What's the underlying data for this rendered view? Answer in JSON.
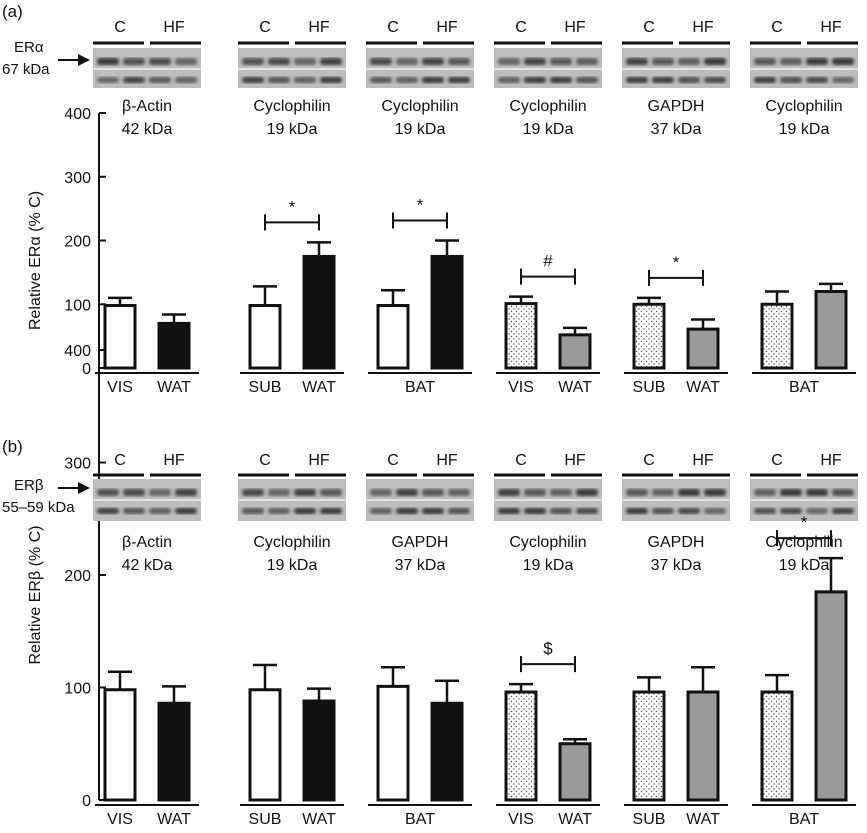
{
  "chart_data": [
    {
      "type": "bar",
      "panel_label": "(a)",
      "ylabel": "Relative ERα (% C)",
      "ylim": [
        0,
        400
      ],
      "yticks": [
        "0",
        "100",
        "200",
        "300",
        "400"
      ],
      "protein_label": "ERα",
      "protein_size": "67 kDa",
      "blot_lanes": [
        "C",
        "HF"
      ],
      "groups": [
        {
          "loading_control": "β-Actin",
          "loading_size": "42 kDa",
          "group_label": "",
          "categories": [
            "VIS",
            "WAT"
          ],
          "values": [
            98,
            70
          ],
          "errors": [
            12,
            14
          ],
          "fills": [
            "white",
            "black"
          ],
          "significance": ""
        },
        {
          "loading_control": "Cyclophilin",
          "loading_size": "19 kDa",
          "group_label": "",
          "categories": [
            "SUB",
            "WAT"
          ],
          "values": [
            98,
            175
          ],
          "errors": [
            30,
            22
          ],
          "fills": [
            "white",
            "black"
          ],
          "significance": "*"
        },
        {
          "loading_control": "Cyclophilin",
          "loading_size": "19 kDa",
          "group_label": "BAT",
          "categories": [
            "",
            ""
          ],
          "values": [
            98,
            175
          ],
          "errors": [
            24,
            25
          ],
          "fills": [
            "white",
            "black"
          ],
          "significance": "*"
        },
        {
          "loading_control": "Cyclophilin",
          "loading_size": "19 kDa",
          "group_label": "",
          "categories": [
            "VIS",
            "WAT"
          ],
          "values": [
            101,
            52
          ],
          "errors": [
            11,
            11
          ],
          "fills": [
            "dotted",
            "grey"
          ],
          "significance": "#"
        },
        {
          "loading_control": "GAPDH",
          "loading_size": "37 kDa",
          "group_label": "",
          "categories": [
            "SUB",
            "WAT"
          ],
          "values": [
            100,
            61
          ],
          "errors": [
            10,
            15
          ],
          "fills": [
            "dotted",
            "grey"
          ],
          "significance": "*"
        },
        {
          "loading_control": "Cyclophilin",
          "loading_size": "19 kDa",
          "group_label": "BAT",
          "categories": [
            "",
            ""
          ],
          "values": [
            100,
            120
          ],
          "errors": [
            20,
            12
          ],
          "fills": [
            "dotted",
            "grey"
          ],
          "significance": ""
        }
      ]
    },
    {
      "type": "bar",
      "panel_label": "(b)",
      "ylabel": "Relative ERβ (% C)",
      "ylim": [
        0,
        400
      ],
      "yticks": [
        "0",
        "100",
        "200",
        "300",
        "400"
      ],
      "protein_label": "ERβ",
      "protein_size": "55–59 kDa",
      "blot_lanes": [
        "C",
        "HF"
      ],
      "groups": [
        {
          "loading_control": "β-Actin",
          "loading_size": "42 kDa",
          "group_label": "",
          "categories": [
            "VIS",
            "WAT"
          ],
          "values": [
            98,
            86
          ],
          "errors": [
            16,
            15
          ],
          "fills": [
            "white",
            "black"
          ],
          "significance": ""
        },
        {
          "loading_control": "Cyclophilin",
          "loading_size": "19 kDa",
          "group_label": "",
          "categories": [
            "SUB",
            "WAT"
          ],
          "values": [
            98,
            88
          ],
          "errors": [
            22,
            11
          ],
          "fills": [
            "white",
            "black"
          ],
          "significance": ""
        },
        {
          "loading_control": "GAPDH",
          "loading_size": "37 kDa",
          "group_label": "BAT",
          "categories": [
            "",
            ""
          ],
          "values": [
            101,
            86
          ],
          "errors": [
            17,
            20
          ],
          "fills": [
            "white",
            "black"
          ],
          "significance": ""
        },
        {
          "loading_control": "Cyclophilin",
          "loading_size": "19 kDa",
          "group_label": "",
          "categories": [
            "VIS",
            "WAT"
          ],
          "values": [
            96,
            50
          ],
          "errors": [
            7,
            4
          ],
          "fills": [
            "dotted",
            "grey"
          ],
          "significance": "$"
        },
        {
          "loading_control": "GAPDH",
          "loading_size": "37 kDa",
          "group_label": "",
          "categories": [
            "SUB",
            "WAT"
          ],
          "values": [
            96,
            96
          ],
          "errors": [
            13,
            22
          ],
          "fills": [
            "dotted",
            "grey"
          ],
          "significance": ""
        },
        {
          "loading_control": "Cyclophilin",
          "loading_size": "19 kDa",
          "group_label": "BAT",
          "categories": [
            "",
            ""
          ],
          "values": [
            96,
            185
          ],
          "errors": [
            15,
            30
          ],
          "fills": [
            "dotted",
            "grey"
          ],
          "significance": "*"
        }
      ]
    }
  ],
  "colors": {
    "black_bar": "#111111",
    "grey_bar": "#9a9a9a",
    "white_bar": "#ffffff",
    "blot_bg": "#bdbdbd",
    "band": "#2a2a2a"
  }
}
